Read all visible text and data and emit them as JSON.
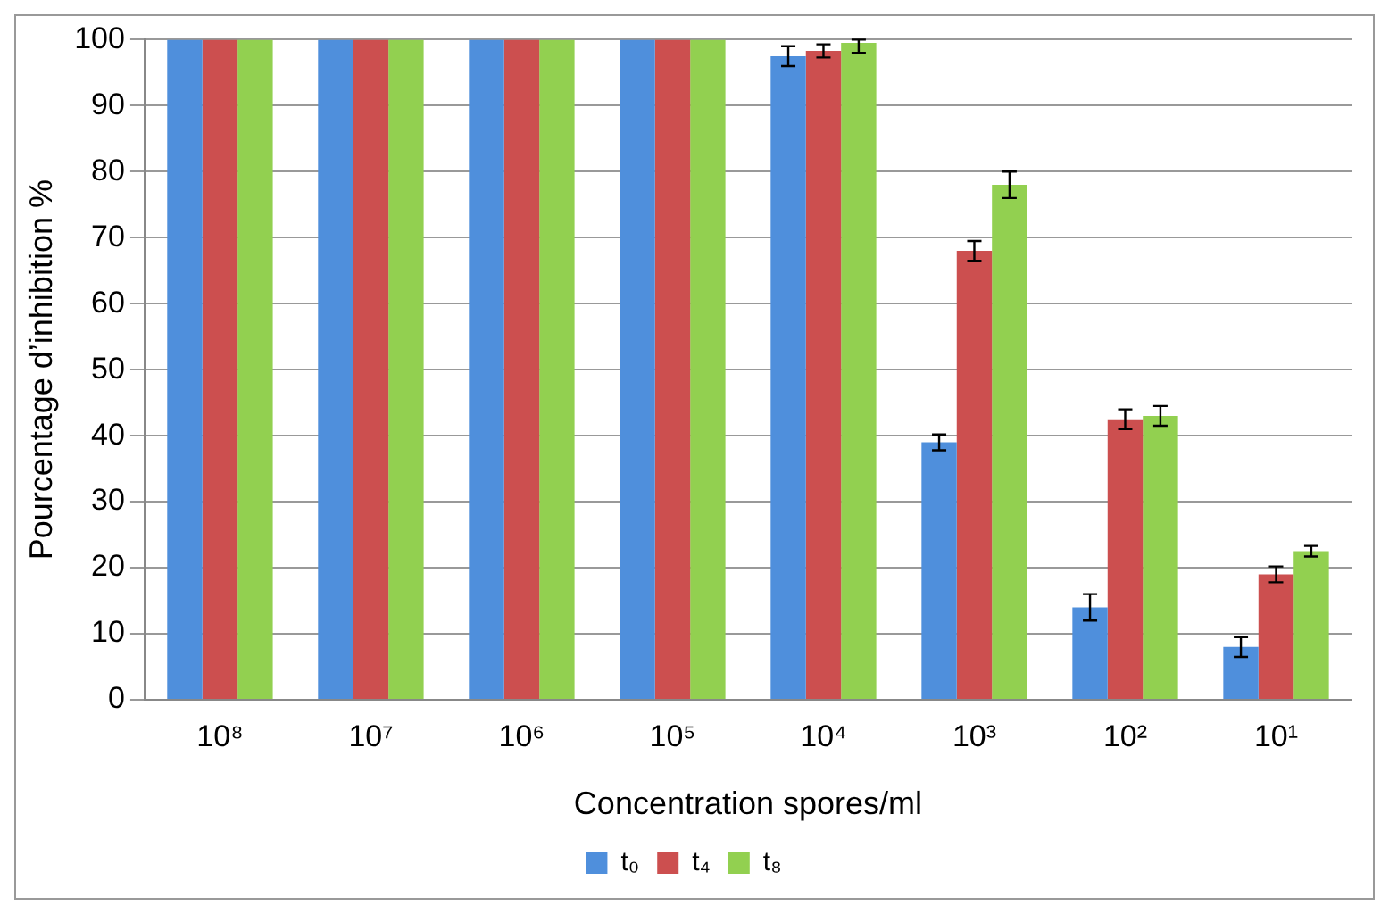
{
  "chart_data": {
    "type": "bar",
    "xlabel": "Concentration spores/ml",
    "ylabel": "Pourcentage d’inhibition %",
    "categories": [
      "10⁸",
      "10⁷",
      "10⁶",
      "10⁵",
      "10⁴",
      "10³",
      "10²",
      "10¹"
    ],
    "series": [
      {
        "name": "t₀",
        "color": "#4f8fdc",
        "values": [
          100,
          100,
          100,
          100,
          97.5,
          39,
          14,
          8
        ],
        "errors": [
          null,
          null,
          null,
          null,
          1.5,
          1.2,
          2,
          1.5
        ]
      },
      {
        "name": "t₄",
        "color": "#cc4f4f",
        "values": [
          100,
          100,
          100,
          100,
          98.3,
          68,
          42.5,
          19
        ],
        "errors": [
          null,
          null,
          null,
          null,
          1,
          1.5,
          1.5,
          1.2
        ]
      },
      {
        "name": "t₈",
        "color": "#92d050",
        "values": [
          100,
          100,
          100,
          100,
          99.5,
          78,
          43,
          22.5
        ],
        "errors": [
          null,
          null,
          null,
          null,
          [
            98,
            100
          ],
          2,
          1.5,
          0.8
        ]
      }
    ],
    "ylim": [
      0,
      100
    ],
    "yticks": [
      0,
      10,
      20,
      30,
      40,
      50,
      60,
      70,
      80,
      90,
      100
    ],
    "grid": "y",
    "legend": "bottom"
  }
}
